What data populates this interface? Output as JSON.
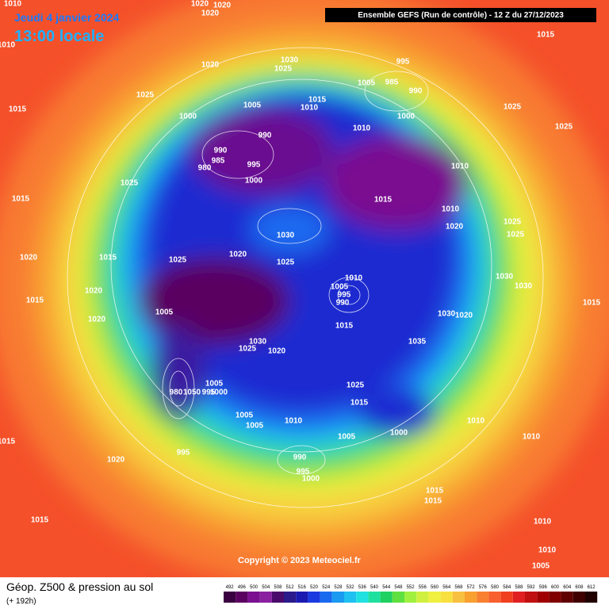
{
  "header": {
    "date": "Jeudi 4 janvier 2024",
    "time": "13:00 locale",
    "run": "Ensemble GEFS  (Run de contrôle)  -  12 Z du 27/12/2023"
  },
  "copyright": "Copyright © 2023 Meteociel.fr",
  "footer": {
    "title": "Géop. Z500 & pression au sol",
    "subtitle": "(+ 192h)"
  },
  "isobar_labels": [
    1010,
    1020,
    1020,
    1020,
    1010,
    1015,
    995,
    1030,
    1025,
    1020,
    1025,
    1005,
    985,
    990,
    1015,
    1005,
    1010,
    1015,
    1025,
    1000,
    1000,
    1010,
    1025,
    990,
    990,
    985,
    995,
    980,
    1000,
    1025,
    1010,
    1015,
    1015,
    1010,
    1025,
    1020,
    1025,
    1030,
    1025,
    1020,
    1025,
    1020,
    1015,
    1010,
    1030,
    1005,
    1020,
    1015,
    995,
    990,
    1030,
    1015,
    1005,
    1020,
    1030,
    1020,
    1015,
    1030,
    1025,
    1020,
    1035,
    1025,
    1005,
    980,
    1050,
    995,
    1000,
    1015,
    1005,
    1010,
    1005,
    1010,
    1000,
    1005,
    1015,
    1010,
    995,
    1020,
    990,
    995,
    1000,
    1015,
    1015,
    1015,
    1010,
    1010,
    1005
  ],
  "legend": {
    "values": [
      492,
      496,
      500,
      504,
      508,
      512,
      516,
      520,
      524,
      528,
      532,
      536,
      540,
      544,
      548,
      552,
      556,
      560,
      564,
      568,
      572,
      576,
      580,
      584,
      588,
      592,
      596,
      600,
      604,
      608,
      612
    ],
    "colors": [
      "#3a0040",
      "#5a0060",
      "#7a1090",
      "#8a20a0",
      "#4a0a6a",
      "#2a1a8a",
      "#1a1ab0",
      "#1a3ae0",
      "#1a6af0",
      "#1a9af0",
      "#20c0f0",
      "#20e0e0",
      "#20e0a0",
      "#20d060",
      "#60e040",
      "#a0f040",
      "#d0f040",
      "#f0f040",
      "#f8e040",
      "#f8c040",
      "#f8a030",
      "#f88030",
      "#f86030",
      "#f04020",
      "#e02020",
      "#c01010",
      "#a00000",
      "#800000",
      "#600000",
      "#400000",
      "#200000"
    ]
  }
}
